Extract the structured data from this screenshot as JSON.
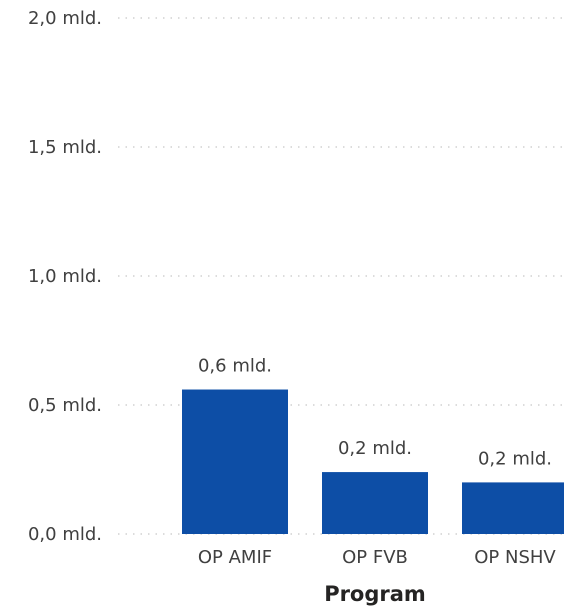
{
  "chart_data": {
    "type": "bar",
    "categories": [
      "OP AMIF",
      "OP FVB",
      "OP NSHV"
    ],
    "values": [
      0.56,
      0.24,
      0.2
    ],
    "data_labels": [
      "0,6 mld.",
      "0,2 mld.",
      "0,2 mld."
    ],
    "xlabel": "Program",
    "ylabel": "",
    "ylim": [
      0,
      2.0
    ],
    "yticks": [
      0,
      0.5,
      1.0,
      1.5,
      2.0
    ],
    "ytick_labels": [
      "0,0 mld.",
      "0,5 mld.",
      "1,0 mld.",
      "1,5 mld.",
      "2,0 mld."
    ],
    "grid": true,
    "bar_color": "#0d4ea6"
  }
}
